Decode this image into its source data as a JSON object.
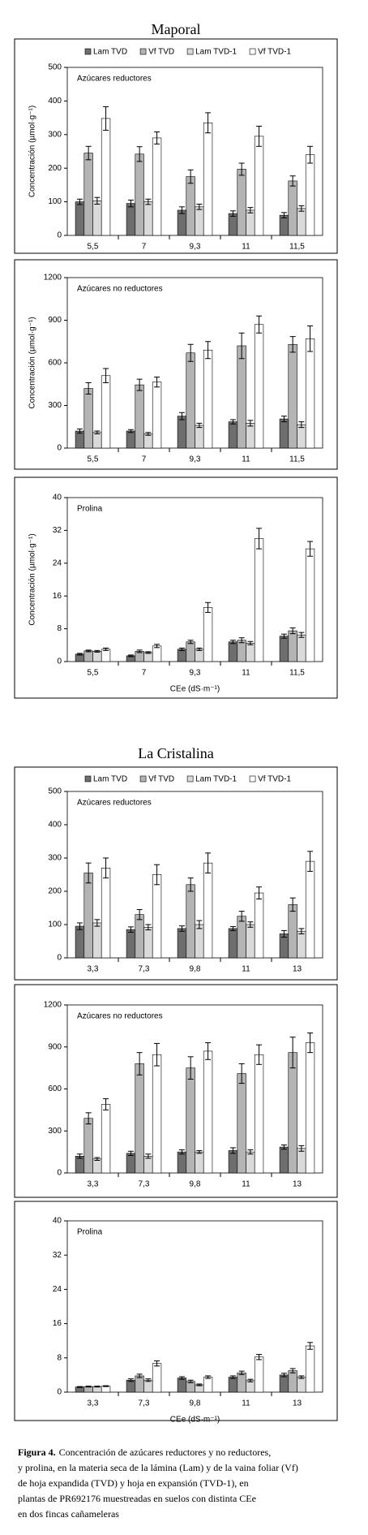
{
  "headings": [
    "Maporal",
    "La Cristalina"
  ],
  "caption": {
    "label": "Figura 4.",
    "lines": [
      "Concentración de azúcares reductores y no reductores,",
      " y prolina, en la materia seca de la lámina (Lam) y de la vaina foliar (Vf)",
      "de hoja expandida (TVD) y hoja en expansión (TVD-1), en",
      "plantas de PR692176 muestreadas en suelos con distinta CEe",
      "en dos fincas cañameleras"
    ]
  },
  "chart_data": [
    {
      "type": "bar",
      "title": "Azúcares reductores",
      "ylabel": "Concentración (µmol·g⁻¹)",
      "legend": "top",
      "categories": [
        "5,5",
        "7",
        "9,3",
        "11",
        "11,5"
      ],
      "ylim": [
        0,
        500
      ],
      "yticks": [
        0,
        100,
        200,
        300,
        400,
        500
      ],
      "series": [
        {
          "name": "Lam TVD",
          "color": "#6e6e6e",
          "values": [
            100,
            95,
            75,
            65,
            60
          ],
          "errors": [
            8,
            10,
            10,
            8,
            8
          ]
        },
        {
          "name": "Vf TVD",
          "color": "#b4b4b4",
          "values": [
            245,
            242,
            175,
            197,
            162
          ],
          "errors": [
            20,
            22,
            20,
            18,
            15
          ]
        },
        {
          "name": "Lam TVD-1",
          "color": "#dadada",
          "values": [
            103,
            100,
            85,
            75,
            80
          ],
          "errors": [
            10,
            8,
            8,
            8,
            8
          ]
        },
        {
          "name": "Vf TVD-1",
          "color": "#ffffff",
          "values": [
            348,
            290,
            335,
            295,
            240
          ],
          "errors": [
            35,
            18,
            30,
            30,
            25
          ]
        }
      ]
    },
    {
      "type": "bar",
      "title": "Azúcares no reductores",
      "ylabel": "Concentración (µmol·g⁻¹)",
      "categories": [
        "5,5",
        "7",
        "9,3",
        "11",
        "11,5"
      ],
      "ylim": [
        0,
        1200
      ],
      "yticks": [
        0,
        300,
        600,
        900,
        1200
      ],
      "series": [
        {
          "color": "#6e6e6e",
          "values": [
            120,
            120,
            225,
            185,
            205
          ],
          "errors": [
            15,
            10,
            25,
            15,
            20
          ]
        },
        {
          "color": "#b4b4b4",
          "values": [
            420,
            445,
            670,
            720,
            730
          ],
          "errors": [
            40,
            40,
            60,
            90,
            55
          ]
        },
        {
          "color": "#dadada",
          "values": [
            110,
            100,
            160,
            175,
            165
          ],
          "errors": [
            10,
            10,
            15,
            20,
            20
          ]
        },
        {
          "color": "#ffffff",
          "values": [
            510,
            465,
            690,
            870,
            770
          ],
          "errors": [
            50,
            35,
            60,
            60,
            90
          ]
        }
      ]
    },
    {
      "type": "bar",
      "title": "Prolina",
      "ylabel": "Concentración (µmol·g⁻¹)",
      "xlabel": "CEe (dS·m⁻¹)",
      "categories": [
        "5,5",
        "7",
        "9,3",
        "11",
        "11,5"
      ],
      "ylim": [
        0,
        40
      ],
      "yticks": [
        0,
        8,
        16,
        24,
        32,
        40
      ],
      "series": [
        {
          "color": "#6e6e6e",
          "values": [
            1.8,
            1.4,
            3.0,
            4.8,
            6.2
          ],
          "errors": [
            0.2,
            0.2,
            0.3,
            0.4,
            0.5
          ]
        },
        {
          "color": "#b4b4b4",
          "values": [
            2.6,
            2.5,
            4.8,
            5.2,
            7.5
          ],
          "errors": [
            0.2,
            0.3,
            0.4,
            0.6,
            0.7
          ]
        },
        {
          "color": "#dadada",
          "values": [
            2.5,
            2.2,
            3.0,
            4.5,
            6.5
          ],
          "errors": [
            0.2,
            0.2,
            0.3,
            0.4,
            0.6
          ]
        },
        {
          "color": "#ffffff",
          "values": [
            3.0,
            3.8,
            13.2,
            30,
            27.5
          ],
          "errors": [
            0.3,
            0.4,
            1.2,
            2.5,
            1.8
          ]
        }
      ]
    },
    {
      "type": "bar",
      "title": "Azúcares reductores",
      "legend": "top",
      "categories": [
        "3,3",
        "7,3",
        "9,8",
        "11",
        "13"
      ],
      "ylim": [
        0,
        500
      ],
      "yticks": [
        0,
        100,
        200,
        300,
        400,
        500
      ],
      "series": [
        {
          "name": "Lam TVD",
          "color": "#6e6e6e",
          "values": [
            95,
            85,
            88,
            88,
            72
          ],
          "errors": [
            10,
            8,
            8,
            6,
            10
          ]
        },
        {
          "name": "Vf TVD",
          "color": "#b4b4b4",
          "values": [
            255,
            130,
            220,
            125,
            160
          ],
          "errors": [
            30,
            15,
            20,
            15,
            20
          ]
        },
        {
          "name": "Lam TVD-1",
          "color": "#dadada",
          "values": [
            105,
            92,
            100,
            100,
            80
          ],
          "errors": [
            10,
            8,
            12,
            8,
            8
          ]
        },
        {
          "name": "Vf TVD-1",
          "color": "#ffffff",
          "values": [
            270,
            250,
            285,
            195,
            290
          ],
          "errors": [
            30,
            30,
            30,
            18,
            30
          ]
        }
      ]
    },
    {
      "type": "bar",
      "title": "Azúcares no reductores",
      "categories": [
        "3,3",
        "7,3",
        "9,8",
        "11",
        "13"
      ],
      "ylim": [
        0,
        1200
      ],
      "yticks": [
        0,
        300,
        600,
        900,
        1200
      ],
      "series": [
        {
          "color": "#6e6e6e",
          "values": [
            120,
            140,
            150,
            160,
            185
          ],
          "errors": [
            15,
            15,
            15,
            20,
            15
          ]
        },
        {
          "color": "#b4b4b4",
          "values": [
            390,
            780,
            750,
            710,
            860
          ],
          "errors": [
            40,
            80,
            80,
            70,
            110
          ]
        },
        {
          "color": "#dadada",
          "values": [
            100,
            120,
            150,
            150,
            175
          ],
          "errors": [
            10,
            15,
            10,
            15,
            20
          ]
        },
        {
          "color": "#ffffff",
          "values": [
            490,
            845,
            870,
            845,
            930
          ],
          "errors": [
            40,
            80,
            60,
            70,
            70
          ]
        }
      ]
    },
    {
      "type": "bar",
      "title": "Prolina",
      "xlabel": "CEe (dS·m⁻¹)",
      "categories": [
        "3,3",
        "7,3",
        "9,8",
        "11",
        "13"
      ],
      "ylim": [
        0,
        40
      ],
      "yticks": [
        0,
        8,
        16,
        24,
        32,
        40
      ],
      "series": [
        {
          "color": "#6e6e6e",
          "values": [
            1.2,
            2.8,
            3.3,
            3.5,
            4.0
          ],
          "errors": [
            0.1,
            0.3,
            0.3,
            0.3,
            0.4
          ]
        },
        {
          "color": "#b4b4b4",
          "values": [
            1.3,
            3.8,
            2.5,
            4.5,
            5.0
          ],
          "errors": [
            0.1,
            0.4,
            0.3,
            0.4,
            0.5
          ]
        },
        {
          "color": "#dadada",
          "values": [
            1.3,
            2.8,
            1.7,
            2.7,
            3.5
          ],
          "errors": [
            0.1,
            0.3,
            0.2,
            0.3,
            0.3
          ]
        },
        {
          "color": "#ffffff",
          "values": [
            1.4,
            6.7,
            3.5,
            8.2,
            10.8
          ],
          "errors": [
            0.1,
            0.6,
            0.3,
            0.6,
            0.8
          ]
        }
      ]
    }
  ]
}
